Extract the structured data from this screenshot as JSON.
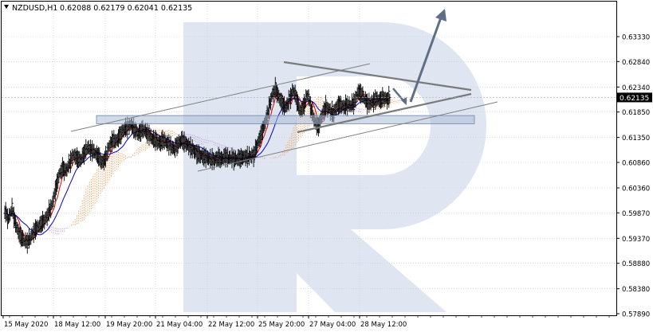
{
  "header": {
    "symbol": "NZDUSD,H1",
    "ohlc": "0.62088 0.62179 0.62041 0.62135"
  },
  "chart_data": {
    "type": "candlestick",
    "symbol": "NZDUSD",
    "timeframe": "H1",
    "open": 0.62088,
    "high": 0.62179,
    "low": 0.62041,
    "close": 0.62135,
    "current_price_label": "0.62135",
    "ylim": [
      0.5789,
      0.6358
    ],
    "y_ticks": [
      "0.63330",
      "0.62840",
      "0.62340",
      "0.61850",
      "0.61350",
      "0.60860",
      "0.60360",
      "0.59870",
      "0.59370",
      "0.58880",
      "0.58380",
      "0.57890"
    ],
    "x_ticks": [
      "15 May 2020",
      "18 May 12:00",
      "19 May 20:00",
      "21 May 04:00",
      "22 May 12:00",
      "25 May 20:00",
      "27 May 04:00",
      "28 May 12:00"
    ],
    "grid": true,
    "indicators": [
      "Ichimoku Kinko Hyo"
    ],
    "price_series": [
      [
        0.599,
        0.5975,
        0.5995,
        0.5965,
        0.5945,
        0.5935,
        0.593,
        0.5935,
        0.595,
        0.5958,
        0.5965,
        0.5972
      ],
      [
        0.5985,
        0.6,
        0.603,
        0.606,
        0.6075,
        0.607,
        0.6085,
        0.61,
        0.6095,
        0.609,
        0.6105,
        0.6115
      ],
      [
        0.611,
        0.6105,
        0.6098,
        0.6085,
        0.6095,
        0.612,
        0.613,
        0.6128,
        0.614,
        0.615,
        0.6155,
        0.616
      ],
      [
        0.615,
        0.6142,
        0.615,
        0.6148,
        0.614,
        0.6132,
        0.6128,
        0.6124,
        0.613,
        0.6124,
        0.6118,
        0.6112
      ],
      [
        0.6122,
        0.613,
        0.6125,
        0.6118,
        0.6112,
        0.6105,
        0.61,
        0.6098,
        0.6095,
        0.6093,
        0.609,
        0.6095
      ],
      [
        0.6092,
        0.6098,
        0.6095,
        0.6094,
        0.6092,
        0.6094,
        0.6096,
        0.6097,
        0.6098,
        0.61,
        0.612,
        0.614
      ],
      [
        0.616,
        0.6185,
        0.6215,
        0.623,
        0.6215,
        0.62,
        0.6195,
        0.621,
        0.6228,
        0.6208,
        0.6185,
        0.62
      ],
      [
        0.622,
        0.619,
        0.6165,
        0.6155,
        0.618,
        0.6195,
        0.619,
        0.618,
        0.6195,
        0.62,
        0.6195,
        0.62
      ],
      [
        0.6198,
        0.6205,
        0.6225,
        0.622,
        0.6208,
        0.62,
        0.6205,
        0.621,
        0.6208,
        0.6213,
        0.621,
        0.62135
      ]
    ]
  }
}
